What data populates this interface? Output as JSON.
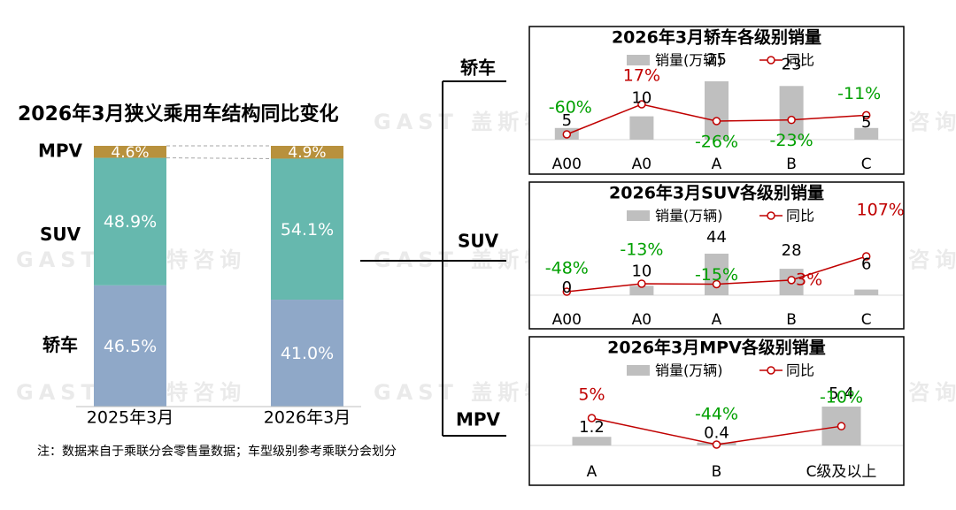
{
  "watermark": "GAST 盖斯特咨询",
  "colors": {
    "sedan": "#8fa8c8",
    "suv": "#66b8ae",
    "mpv": "#b8913d",
    "bar_gray": "#bfbfbf",
    "line_red": "#c00000",
    "pos_red": "#c00000",
    "neg_green": "#00a000"
  },
  "structure_chart": {
    "type": "bar",
    "title": "2026年3月狭义乘用车结构同比变化",
    "categories": [
      "2025年3月",
      "2026年3月"
    ],
    "series": [
      {
        "name": "轿车",
        "values": [
          46.5,
          41.0
        ],
        "labels": [
          "46.5%",
          "41.0%"
        ]
      },
      {
        "name": "SUV",
        "values": [
          48.9,
          54.1
        ],
        "labels": [
          "48.9%",
          "54.1%"
        ]
      },
      {
        "name": "MPV",
        "values": [
          4.6,
          4.9
        ],
        "labels": [
          "4.6%",
          "4.9%"
        ]
      }
    ],
    "ylim": [
      0,
      100
    ]
  },
  "bracket_labels": {
    "sedan": "轿车",
    "suv": "SUV",
    "mpv": "MPV"
  },
  "chart_data": [
    {
      "type": "bar",
      "title": "2026年3月轿车各级别销量",
      "legend": {
        "bar": "销量(万辆)",
        "line": "同比"
      },
      "categories": [
        "A00",
        "A0",
        "A",
        "B",
        "C"
      ],
      "values": [
        5,
        10,
        25,
        23,
        5
      ],
      "value_labels": [
        "5",
        "10",
        "25",
        "23",
        "5"
      ],
      "yoy": [
        -60,
        17,
        -26,
        -23,
        -11
      ],
      "yoy_labels": [
        "-60%",
        "17%",
        "-26%",
        "-23%",
        "-11%"
      ]
    },
    {
      "type": "bar",
      "title": "2026年3月SUV各级别销量",
      "legend": {
        "bar": "销量(万辆)",
        "line": "同比"
      },
      "categories": [
        "A00",
        "A0",
        "A",
        "B",
        "C"
      ],
      "values": [
        0,
        10,
        44,
        28,
        6
      ],
      "value_labels": [
        "0",
        "10",
        "44",
        "28",
        "6"
      ],
      "yoy": [
        -48,
        -13,
        -15,
        3,
        107
      ],
      "yoy_labels": [
        "-48%",
        "-13%",
        "-15%",
        "3%",
        "107%"
      ]
    },
    {
      "type": "bar",
      "title": "2026年3月MPV各级别销量",
      "legend": {
        "bar": "销量(万辆)",
        "line": "同比"
      },
      "categories": [
        "A",
        "B",
        "C级及以上"
      ],
      "values": [
        1.2,
        0.4,
        5.4
      ],
      "value_labels": [
        "1.2",
        "0.4",
        "5.4"
      ],
      "yoy": [
        5,
        -44,
        -10
      ],
      "yoy_labels": [
        "5%",
        "-44%",
        "-10%"
      ]
    }
  ],
  "footnote": "注：数据来自于乘联分会零售量数据；车型级别参考乘联分会划分"
}
